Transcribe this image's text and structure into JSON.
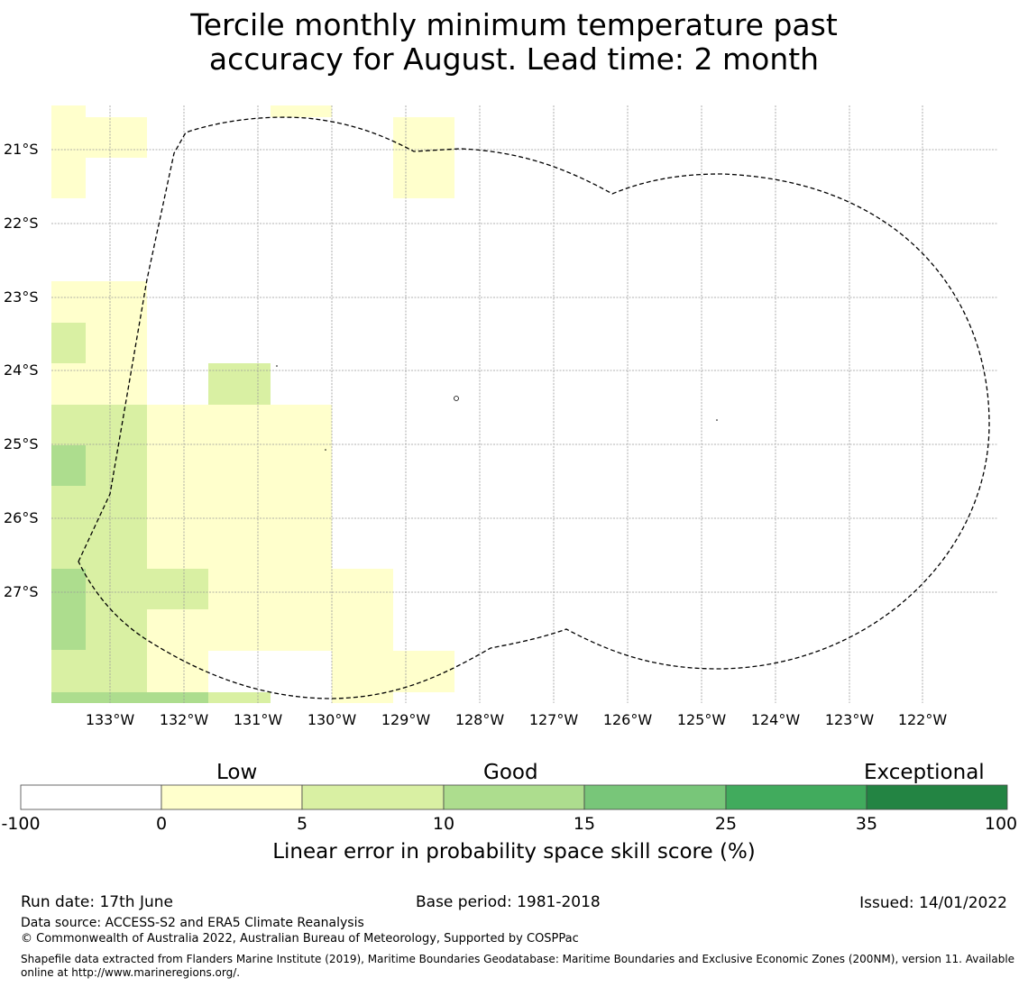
{
  "title_line1": "Tercile monthly minimum temperature past",
  "title_line2": "accuracy for August. Lead time: 2 month",
  "map": {
    "lat_labels": [
      "21°S",
      "22°S",
      "23°S",
      "24°S",
      "25°S",
      "26°S",
      "27°S"
    ],
    "lon_labels": [
      "133°W",
      "132°W",
      "131°W",
      "130°W",
      "129°W",
      "128°W",
      "127°W",
      "126°W",
      "125°W",
      "124°W",
      "123°W",
      "122°W"
    ],
    "boundary_style": "dashed",
    "colors": {
      "low": "#ffffcc",
      "c5_10": "#d9f0a3",
      "c10_15": "#addd8e",
      "grid": "#999999"
    }
  },
  "colorbar": {
    "categories": [
      "Low",
      "Good",
      "Exceptional"
    ],
    "ticks": [
      "-100",
      "0",
      "5",
      "10",
      "15",
      "25",
      "35",
      "100"
    ],
    "colors": [
      "#ffffff",
      "#ffffcc",
      "#d9f0a3",
      "#addd8e",
      "#78c679",
      "#41ab5d",
      "#238443"
    ],
    "label": "Linear error in probability space skill score (%)"
  },
  "footer": {
    "run_date": "Run date: 17th June",
    "base_period": "Base period: 1981-2018",
    "issued": "Issued: 14/01/2022",
    "data_source": "Data source: ACCESS-S2 and ERA5 Climate Reanalysis",
    "copyright": "© Commonwealth of Australia 2022, Australian Bureau of Meteorology, Supported by COSPPac",
    "shapefile": "Shapefile data extracted from Flanders Marine Institute (2019), Maritime Boundaries Geodatabase: Maritime Boundaries and Exclusive Economic Zones (200NM), version 11. Available online at http://www.marineregions.org/."
  }
}
